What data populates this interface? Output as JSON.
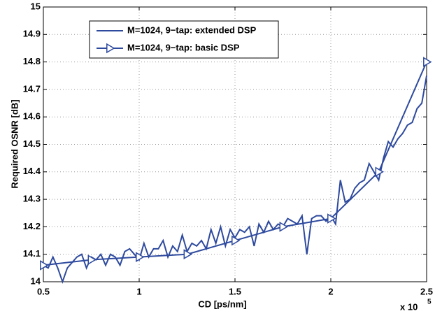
{
  "chart_data": {
    "type": "line",
    "x_label": "CD [ps/nm]",
    "y_label": "Required OSNR [dB]",
    "x_multiplier": {
      "base": "x 10",
      "exponent": "5"
    },
    "xlim": [
      0.5,
      2.5
    ],
    "xticks": [
      0.5,
      1,
      1.5,
      2,
      2.5
    ],
    "ylim": [
      14,
      15
    ],
    "yticks": [
      14,
      14.1,
      14.2,
      14.3,
      14.4,
      14.5,
      14.6,
      14.7,
      14.8,
      14.9,
      15
    ],
    "grid": true,
    "legend": "upper left",
    "series": [
      {
        "name": "M=1024, 9−tap: extended DSP",
        "color": "#2e4a9e",
        "marker": "none",
        "x": [
          0.5,
          0.525,
          0.55,
          0.575,
          0.6,
          0.625,
          0.65,
          0.675,
          0.7,
          0.725,
          0.75,
          0.775,
          0.8,
          0.825,
          0.85,
          0.875,
          0.9,
          0.925,
          0.95,
          0.975,
          1.0,
          1.025,
          1.05,
          1.075,
          1.1,
          1.125,
          1.15,
          1.175,
          1.2,
          1.225,
          1.25,
          1.275,
          1.3,
          1.325,
          1.35,
          1.375,
          1.4,
          1.425,
          1.45,
          1.475,
          1.5,
          1.525,
          1.55,
          1.575,
          1.6,
          1.625,
          1.65,
          1.675,
          1.7,
          1.725,
          1.75,
          1.775,
          1.8,
          1.825,
          1.85,
          1.875,
          1.9,
          1.925,
          1.95,
          1.975,
          2.0,
          2.025,
          2.05,
          2.075,
          2.1,
          2.125,
          2.15,
          2.175,
          2.2,
          2.225,
          2.25,
          2.275,
          2.3,
          2.325,
          2.35,
          2.375,
          2.4,
          2.425,
          2.45,
          2.475,
          2.5
        ],
        "values": [
          14.06,
          14.05,
          14.09,
          14.05,
          14.0,
          14.05,
          14.07,
          14.09,
          14.1,
          14.05,
          14.09,
          14.08,
          14.1,
          14.06,
          14.1,
          14.09,
          14.06,
          14.11,
          14.12,
          14.1,
          14.08,
          14.14,
          14.09,
          14.12,
          14.12,
          14.15,
          14.09,
          14.13,
          14.11,
          14.17,
          14.11,
          14.14,
          14.13,
          14.15,
          14.12,
          14.19,
          14.14,
          14.2,
          14.13,
          14.19,
          14.16,
          14.19,
          14.18,
          14.2,
          14.13,
          14.21,
          14.18,
          14.22,
          14.19,
          14.21,
          14.2,
          14.23,
          14.22,
          14.21,
          14.24,
          14.1,
          14.23,
          14.24,
          14.24,
          14.22,
          14.24,
          14.21,
          14.37,
          14.29,
          14.3,
          14.34,
          14.36,
          14.37,
          14.43,
          14.4,
          14.37,
          14.45,
          14.51,
          14.49,
          14.52,
          14.54,
          14.57,
          14.58,
          14.63,
          14.65,
          14.75
        ]
      },
      {
        "name": "M=1024, 9−tap: basic DSP",
        "color": "#2e4a9e",
        "marker": "triangle-right",
        "x": [
          0.5,
          0.75,
          1.0,
          1.25,
          1.5,
          1.75,
          2.0,
          2.25,
          2.5
        ],
        "values": [
          14.06,
          14.08,
          14.09,
          14.1,
          14.15,
          14.2,
          14.23,
          14.4,
          14.8
        ]
      }
    ]
  }
}
